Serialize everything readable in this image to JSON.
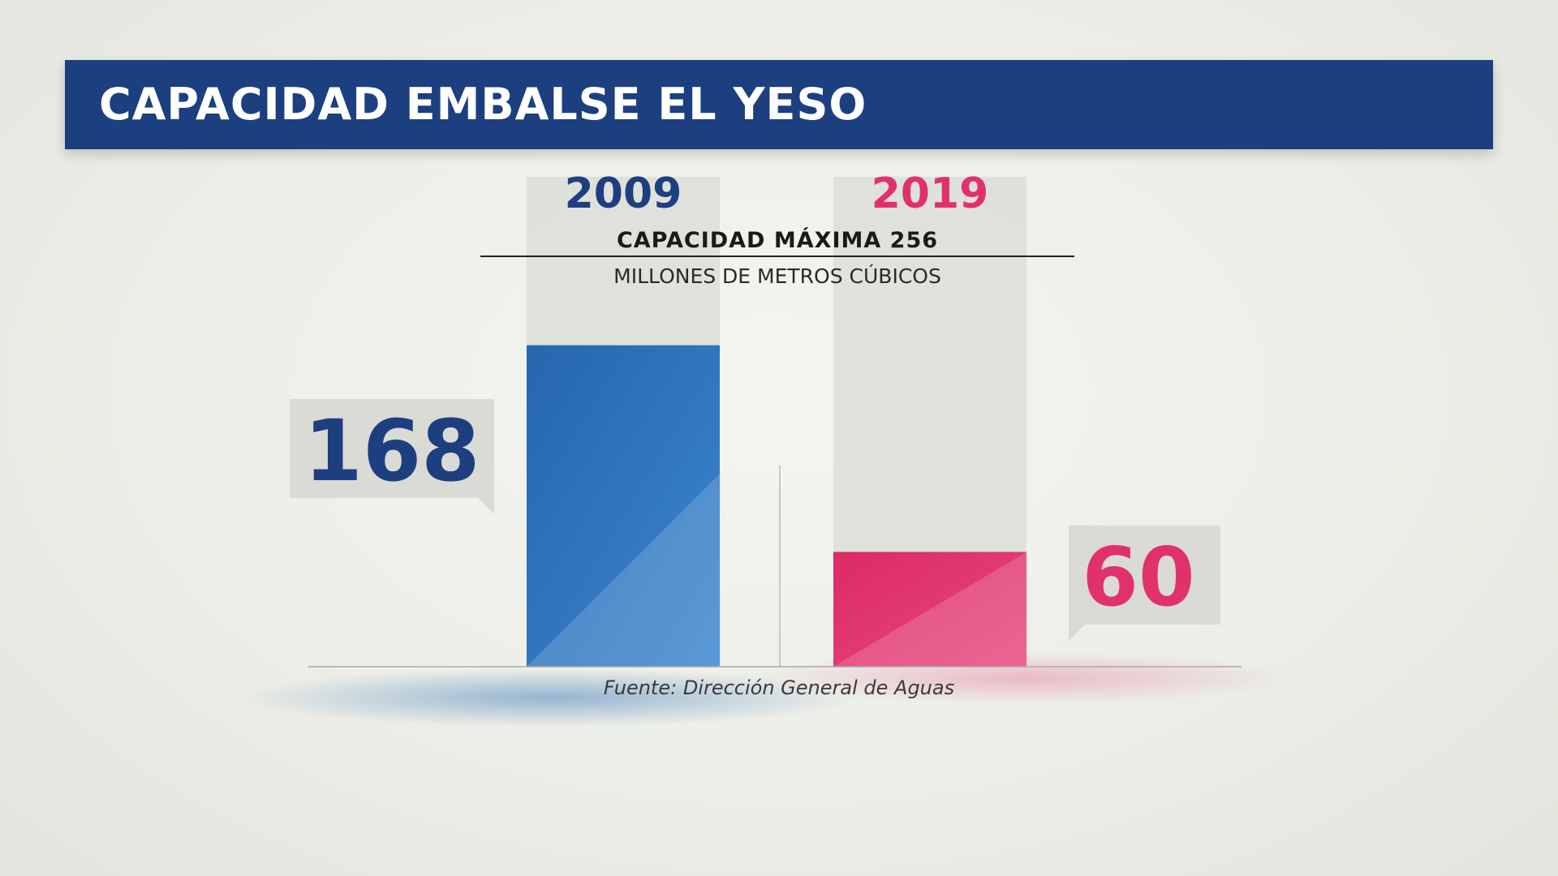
{
  "header": {
    "title": "CAPACIDAD EMBALSE EL YESO"
  },
  "capacity": {
    "title": "CAPACIDAD MÁXIMA 256",
    "unit": "MILLONES DE METROS CÚBICOS"
  },
  "source": "Fuente: Dirección General de Aguas",
  "colors": {
    "banner": "#1c3f80",
    "series_2009": "#2a6db4",
    "series_2019": "#e0316d",
    "label_2009": "#1e3f7f",
    "label_2019": "#e0316d"
  },
  "chart_data": {
    "type": "bar",
    "title": "CAPACIDAD EMBALSE EL YESO",
    "ylabel": "MILLONES DE METROS CÚBICOS",
    "max_capacity": 256,
    "ylim": [
      0,
      256
    ],
    "categories": [
      "2009",
      "2019"
    ],
    "values": [
      168,
      60
    ],
    "value_labels": [
      "168",
      "60"
    ]
  }
}
